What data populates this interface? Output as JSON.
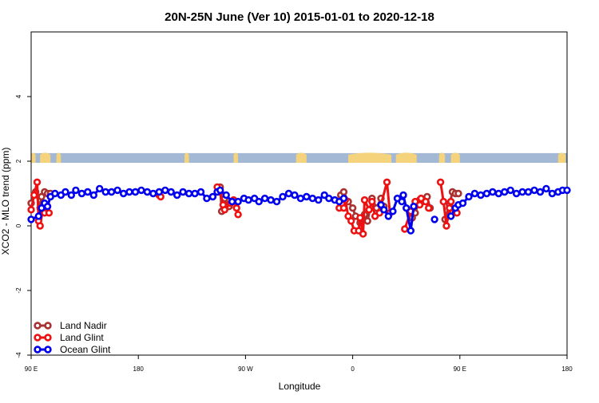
{
  "chart_data": {
    "type": "line",
    "title": "20N-25N June (Ver 10)   2015-01-01 to 2020-12-18",
    "xlabel": "Longitude",
    "ylabel": "XCO2 - MLO trend (ppm)",
    "xlim": [
      90,
      450
    ],
    "ylim": [
      -4,
      6
    ],
    "x_ticks": [
      {
        "value": 90,
        "label": "90 E"
      },
      {
        "value": 162,
        "label": "180"
      },
      {
        "value": 234,
        "label": "90 W"
      },
      {
        "value": 306,
        "label": "0"
      },
      {
        "value": 378,
        "label": "90 E"
      },
      {
        "value": 450,
        "label": "180"
      }
    ],
    "y_ticks": [
      {
        "value": -4,
        "label": "-4"
      },
      {
        "value": -2,
        "label": "-2"
      },
      {
        "value": 0,
        "label": "0"
      },
      {
        "value": 2,
        "label": "2"
      },
      {
        "value": 4,
        "label": "4"
      }
    ],
    "map_band": {
      "y_from": 1.95,
      "y_to": 2.25,
      "water_color": "#a3b8d4",
      "land_color": "#f5d37c"
    },
    "legend_position": "bottom-left",
    "series": [
      {
        "name": "Land Nadir",
        "color": "#a83232",
        "segments": [
          [
            [
              90,
              0.7
            ],
            [
              93,
              1.05
            ],
            [
              96,
              0.55
            ],
            [
              97,
              0.9
            ],
            [
              99,
              1.05
            ],
            [
              101,
              1.0
            ],
            [
              103,
              1.0
            ]
          ],
          [
            [
              217,
              1.2
            ],
            [
              218,
              0.45
            ],
            [
              220,
              0.85
            ],
            [
              223,
              0.6
            ]
          ],
          [
            [
              298,
              0.95
            ],
            [
              300,
              1.05
            ],
            [
              303,
              0.75
            ],
            [
              306,
              0.55
            ],
            [
              308,
              0.3
            ],
            [
              311,
              0.1
            ],
            [
              314,
              0.35
            ],
            [
              316,
              0.15
            ],
            [
              319,
              0.85
            ],
            [
              322,
              0.55
            ],
            [
              325,
              0.85
            ],
            [
              327,
              0.6
            ]
          ],
          [
            [
              346,
              0.25
            ],
            [
              348,
              0.4
            ],
            [
              351,
              0.8
            ],
            [
              353,
              0.75
            ],
            [
              356,
              0.9
            ],
            [
              358,
              0.55
            ]
          ],
          [
            [
              368,
              0.2
            ],
            [
              371,
              0.65
            ],
            [
              373,
              1.05
            ],
            [
              375,
              1.0
            ],
            [
              377,
              1.0
            ]
          ]
        ]
      },
      {
        "name": "Land Glint",
        "color": "#ee1111",
        "segments": [
          [
            [
              90,
              0.5
            ],
            [
              92,
              0.95
            ],
            [
              94,
              1.35
            ],
            [
              95,
              0.15
            ],
            [
              96,
              0.0
            ],
            [
              98,
              0.55
            ],
            [
              99,
              0.4
            ],
            [
              101,
              0.6
            ],
            [
              102,
              0.4
            ]
          ],
          [
            [
              176,
              0.95
            ],
            [
              177,
              0.9
            ]
          ],
          [
            [
              215,
              1.2
            ],
            [
              217,
              1.05
            ],
            [
              219,
              0.65
            ],
            [
              220,
              0.5
            ],
            [
              224,
              0.7
            ],
            [
              226,
              0.8
            ],
            [
              228,
              0.55
            ],
            [
              229,
              0.35
            ]
          ],
          [
            [
              297,
              0.55
            ],
            [
              300,
              0.55
            ],
            [
              301,
              0.8
            ],
            [
              303,
              0.3
            ],
            [
              305,
              0.15
            ],
            [
              307,
              -0.15
            ],
            [
              310,
              -0.15
            ],
            [
              311,
              0.25
            ],
            [
              313,
              -0.25
            ],
            [
              314,
              0.8
            ],
            [
              317,
              0.5
            ],
            [
              319,
              0.75
            ],
            [
              321,
              0.3
            ],
            [
              324,
              0.4
            ],
            [
              325,
              0.65
            ],
            [
              329,
              1.35
            ],
            [
              331,
              0.4
            ]
          ],
          [
            [
              341,
              -0.1
            ],
            [
              345,
              0.45
            ],
            [
              348,
              0.75
            ],
            [
              351,
              0.65
            ],
            [
              352,
              0.85
            ],
            [
              355,
              0.75
            ],
            [
              357,
              0.55
            ]
          ],
          [
            [
              365,
              1.35
            ],
            [
              367,
              0.75
            ],
            [
              369,
              0.0
            ],
            [
              371,
              0.55
            ],
            [
              372,
              0.75
            ],
            [
              373,
              0.4
            ],
            [
              375,
              0.5
            ],
            [
              376,
              0.4
            ]
          ]
        ]
      },
      {
        "name": "Ocean Glint",
        "color": "#0000ee",
        "segments": [
          [
            [
              90,
              0.2
            ],
            [
              95,
              0.3
            ],
            [
              97,
              0.55
            ],
            [
              99,
              0.7
            ],
            [
              101,
              0.6
            ],
            [
              103,
              0.9
            ],
            [
              106,
              1.0
            ],
            [
              110,
              0.95
            ],
            [
              113,
              1.05
            ],
            [
              117,
              0.95
            ],
            [
              120,
              1.1
            ],
            [
              124,
              1.0
            ],
            [
              128,
              1.05
            ],
            [
              132,
              0.95
            ],
            [
              136,
              1.15
            ],
            [
              140,
              1.05
            ],
            [
              144,
              1.05
            ],
            [
              148,
              1.1
            ],
            [
              152,
              1.0
            ],
            [
              156,
              1.05
            ],
            [
              160,
              1.05
            ],
            [
              164,
              1.1
            ],
            [
              168,
              1.05
            ],
            [
              172,
              1.0
            ],
            [
              176,
              1.05
            ],
            [
              180,
              1.1
            ],
            [
              184,
              1.05
            ],
            [
              188,
              0.95
            ],
            [
              192,
              1.05
            ],
            [
              196,
              1.0
            ],
            [
              200,
              1.0
            ],
            [
              204,
              1.05
            ],
            [
              208,
              0.85
            ],
            [
              212,
              0.9
            ],
            [
              215,
              1.05
            ],
            [
              217,
              1.1
            ],
            [
              221,
              0.95
            ],
            [
              225,
              0.75
            ],
            [
              229,
              0.75
            ],
            [
              233,
              0.85
            ],
            [
              236,
              0.8
            ],
            [
              240,
              0.85
            ],
            [
              243,
              0.75
            ],
            [
              247,
              0.85
            ],
            [
              251,
              0.8
            ],
            [
              255,
              0.75
            ],
            [
              259,
              0.9
            ],
            [
              263,
              1.0
            ],
            [
              267,
              0.95
            ],
            [
              271,
              0.85
            ],
            [
              275,
              0.9
            ],
            [
              279,
              0.85
            ],
            [
              283,
              0.8
            ],
            [
              287,
              0.95
            ],
            [
              290,
              0.85
            ],
            [
              294,
              0.8
            ],
            [
              297,
              0.75
            ],
            [
              300,
              0.85
            ]
          ],
          [
            [
              325,
              0.65
            ],
            [
              327,
              0.5
            ],
            [
              330,
              0.3
            ],
            [
              333,
              0.45
            ],
            [
              336,
              0.85
            ],
            [
              339,
              0.75
            ],
            [
              340,
              0.95
            ],
            [
              342,
              0.55
            ],
            [
              345,
              -0.15
            ],
            [
              347,
              0.6
            ]
          ],
          [
            [
              372,
              0.3
            ],
            [
              375,
              0.55
            ],
            [
              377,
              0.65
            ],
            [
              380,
              0.7
            ],
            [
              384,
              0.9
            ],
            [
              388,
              1.0
            ],
            [
              392,
              0.95
            ],
            [
              396,
              1.0
            ],
            [
              400,
              1.05
            ],
            [
              404,
              1.0
            ],
            [
              408,
              1.05
            ],
            [
              412,
              1.1
            ],
            [
              416,
              1.0
            ],
            [
              420,
              1.05
            ],
            [
              424,
              1.05
            ],
            [
              428,
              1.1
            ],
            [
              432,
              1.05
            ],
            [
              436,
              1.15
            ],
            [
              440,
              1.0
            ],
            [
              444,
              1.05
            ],
            [
              447,
              1.1
            ],
            [
              450,
              1.1
            ]
          ],
          [
            [
              361,
              0.2
            ]
          ]
        ]
      }
    ]
  }
}
